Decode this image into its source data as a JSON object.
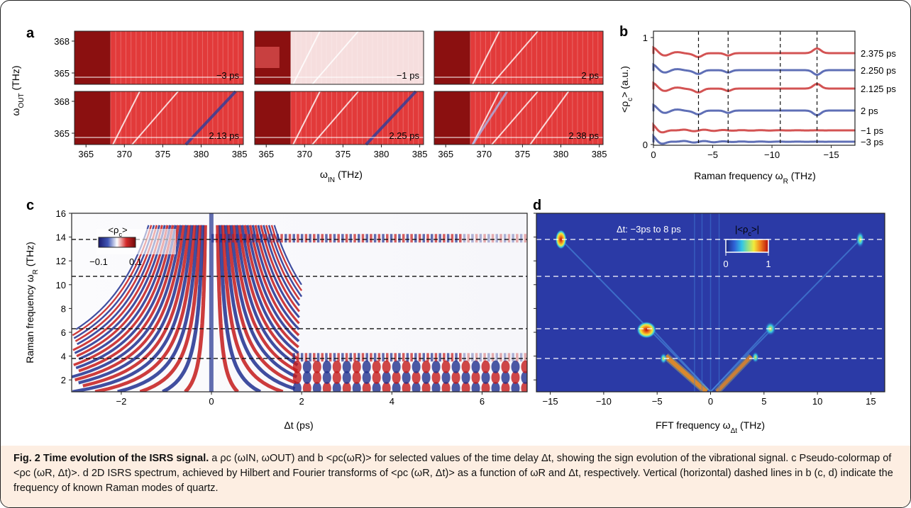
{
  "panels": {
    "a": {
      "label": "a",
      "ylabel": "ω",
      "ylabel_sub": "OUT",
      "ylabel_unit": " (THz)",
      "xlabel": "ω",
      "xlabel_sub": "IN",
      "xlabel_unit": " (THz)",
      "y_ticks": [
        "368",
        "365"
      ],
      "x_ticks": [
        "365",
        "370",
        "375",
        "380",
        "385"
      ],
      "subplot_labels": [
        "−3 ps",
        "−1 ps",
        "2 ps",
        "2.13 ps",
        "2.25 ps",
        "2.38 ps"
      ]
    },
    "b": {
      "label": "b",
      "ylabel": "<ρ",
      "ylabel_sub": "c",
      "ylabel_unit": "> (a.u.)",
      "xlabel": "Raman frequency ω",
      "xlabel_sub": "R",
      "xlabel_unit": " (THz)",
      "x_ticks": [
        "0",
        "−5",
        "−10",
        "−15"
      ],
      "y_ticks": [
        "1",
        "0"
      ],
      "trace_labels": [
        "2.375 ps",
        "2.250 ps",
        "2.125 ps",
        "2 ps",
        "−1 ps",
        "−3 ps"
      ]
    },
    "c": {
      "label": "c",
      "ylabel": "Raman frequency ω",
      "ylabel_sub": "R",
      "ylabel_unit": " (THz)",
      "xlabel": "Δt (ps)",
      "y_ticks": [
        "16",
        "14",
        "12",
        "10",
        "8",
        "6",
        "4",
        "2"
      ],
      "x_ticks": [
        "−2",
        "0",
        "2",
        "4",
        "6"
      ],
      "colorbar_title": "<ρ",
      "colorbar_title_sub": "c",
      "colorbar_title_end": ">",
      "colorbar_ticks": [
        "−0.1",
        "0.1"
      ]
    },
    "d": {
      "label": "d",
      "xlabel": "FFT frequency ω",
      "xlabel_sub": "Δt",
      "xlabel_unit": " (THz)",
      "x_ticks": [
        "−15",
        "−10",
        "−5",
        "0",
        "5",
        "10",
        "15"
      ],
      "annotation": "Δt: −3ps to 8 ps",
      "colorbar_title": "|<ρ",
      "colorbar_title_sub": "c",
      "colorbar_title_end": ">|",
      "colorbar_ticks": [
        "0",
        "1"
      ]
    }
  },
  "raman_modes_thz": [
    3.8,
    6.3,
    10.7,
    13.8
  ],
  "colors": {
    "red": "#c41a1a",
    "darkred": "#8b1010",
    "blue": "#2a3f9e",
    "navy": "#1f2f8f",
    "caption_bg": "#fdeee2"
  },
  "caption": {
    "title": "Fig. 2 Time evolution of the ISRS signal.",
    "text": " a ρc (ωIN, ωOUT) and b <ρc(ωR)> for selected values of the time delay Δt, showing the sign evolution of the vibrational signal. c Pseudo-colormap of <ρc (ωR, Δt)>. d 2D ISRS spectrum, achieved by Hilbert and Fourier transforms of <ρc (ωR, Δt)> as a function of ωR and Δt, respectively. Vertical (horizontal) dashed lines in b (c, d) indicate the frequency of known Raman modes of quartz."
  }
}
